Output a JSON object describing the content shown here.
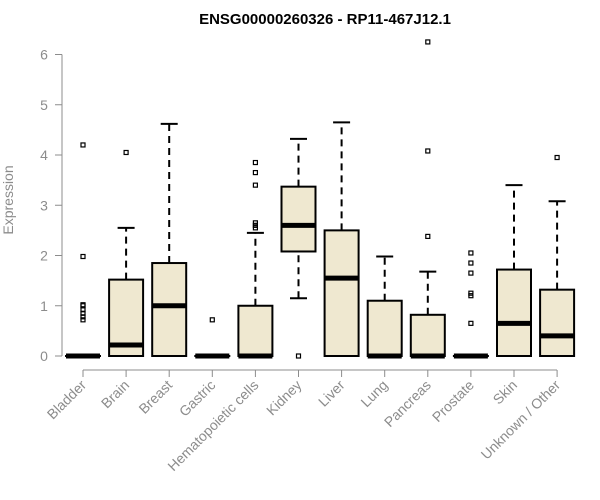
{
  "chart_data": {
    "type": "boxplot",
    "title": "ENSG00000260326 - RP11-467J12.1",
    "xlabel": "",
    "ylabel": "Expression",
    "ylim": [
      0,
      6.2
    ],
    "yticks": [
      0,
      1,
      2,
      3,
      4,
      5,
      6
    ],
    "box_fill": "#efe8d0",
    "categories": [
      "Bladder",
      "Brain",
      "Breast",
      "Gastric",
      "Hematopoietic cells",
      "Kidney",
      "Liver",
      "Lung",
      "Pancreas",
      "Prostate",
      "Skin",
      "Unknown / Other"
    ],
    "boxes": [
      {
        "min": 0,
        "q1": 0,
        "median": 0,
        "q3": 0,
        "max": 0,
        "outliers": [
          0.72,
          0.78,
          0.85,
          0.92,
          1.0,
          1.02,
          1.98,
          4.2
        ]
      },
      {
        "min": 0,
        "q1": 0,
        "median": 0.22,
        "q3": 1.52,
        "max": 2.55,
        "outliers": [
          4.05
        ]
      },
      {
        "min": 0,
        "q1": 0,
        "median": 1.0,
        "q3": 1.85,
        "max": 4.62,
        "outliers": []
      },
      {
        "min": 0,
        "q1": 0,
        "median": 0,
        "q3": 0,
        "max": 0,
        "outliers": [
          0.72
        ]
      },
      {
        "min": 0,
        "q1": 0,
        "median": 0,
        "q3": 1.0,
        "max": 2.45,
        "outliers": [
          2.55,
          2.6,
          2.65,
          3.4,
          3.65,
          3.85
        ]
      },
      {
        "min": 1.15,
        "q1": 2.08,
        "median": 2.6,
        "q3": 3.37,
        "max": 4.32,
        "outliers": [
          0
        ]
      },
      {
        "min": 0,
        "q1": 0,
        "median": 1.55,
        "q3": 2.5,
        "max": 4.65,
        "outliers": []
      },
      {
        "min": 0,
        "q1": 0,
        "median": 0,
        "q3": 1.1,
        "max": 1.98,
        "outliers": []
      },
      {
        "min": 0,
        "q1": 0,
        "median": 0,
        "q3": 0.82,
        "max": 1.68,
        "outliers": [
          2.38,
          4.08,
          6.25
        ]
      },
      {
        "min": 0,
        "q1": 0,
        "median": 0,
        "q3": 0,
        "max": 0,
        "outliers": [
          0.65,
          1.2,
          1.25,
          1.65,
          1.85,
          2.05
        ]
      },
      {
        "min": 0,
        "q1": 0,
        "median": 0.65,
        "q3": 1.72,
        "max": 3.4,
        "outliers": []
      },
      {
        "min": 0,
        "q1": 0,
        "median": 0.4,
        "q3": 1.32,
        "max": 3.08,
        "outliers": [
          3.95
        ]
      }
    ]
  }
}
